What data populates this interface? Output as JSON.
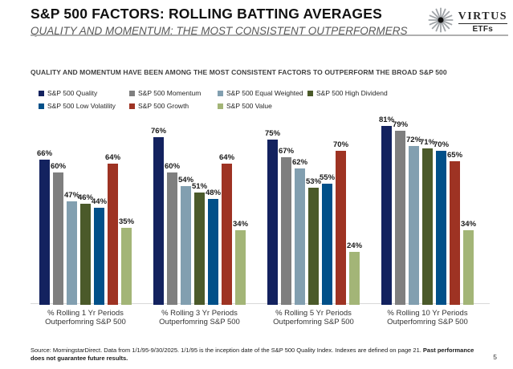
{
  "header": {
    "title": "S&P 500 FACTORS: ROLLING BATTING AVERAGES",
    "subtitle": "QUALITY AND MOMENTUM: THE MOST CONSISTENT OUTPERFORMERS",
    "logo": {
      "brand": "VIRTUS",
      "product": "ETFs",
      "icon": "starburst-icon"
    }
  },
  "chart_data": {
    "type": "bar",
    "title": "QUALITY AND MOMENTUM HAVE BEEN AMONG THE MOST CONSISTENT FACTORS TO OUTPERFORM THE BROAD S&P 500",
    "categories": [
      {
        "line1": "% Rolling 1 Yr Periods",
        "line2": "Outperfomring S&P 500"
      },
      {
        "line1": "% Rolling 3 Yr Periods",
        "line2": "Outperfomring S&P 500"
      },
      {
        "line1": "% Rolling 5 Yr Periods",
        "line2": "Outperfomring S&P 500"
      },
      {
        "line1": "% Rolling 10 Yr Periods",
        "line2": "Outperfomring S&P 500"
      }
    ],
    "series": [
      {
        "name": "S&P 500 Quality",
        "color": "#13225f",
        "values": [
          66,
          76,
          75,
          81
        ]
      },
      {
        "name": "S&P 500 Momentum",
        "color": "#7f7f7f",
        "values": [
          60,
          60,
          67,
          79
        ]
      },
      {
        "name": "S&P 500 Equal Weighted",
        "color": "#829fb0",
        "values": [
          47,
          54,
          62,
          72
        ]
      },
      {
        "name": "S&P 500 High Dividend",
        "color": "#4b5a2a",
        "values": [
          46,
          51,
          53,
          71
        ]
      },
      {
        "name": "S&P 500 Low Volatility",
        "color": "#015089",
        "values": [
          44,
          48,
          55,
          70
        ]
      },
      {
        "name": "S&P 500 Growth",
        "color": "#9e3323",
        "values": [
          64,
          64,
          70,
          65
        ]
      },
      {
        "name": "S&P 500 Value",
        "color": "#a3b577",
        "values": [
          35,
          34,
          24,
          34
        ]
      }
    ],
    "value_suffix": "%",
    "ylim": [
      0,
      100
    ],
    "grid": false,
    "legend_position": "top-left-two-rows"
  },
  "footer": {
    "source_text": "Source: MorningstarDirect. Data from 1/1/95-9/30/2025. 1/1/95 is the inception date of the S&P 500 Quality Index. Indexes are defined on page 21. ",
    "disclaimer_bold": "Past performance does not guarantee future results.",
    "page_number": "5"
  }
}
